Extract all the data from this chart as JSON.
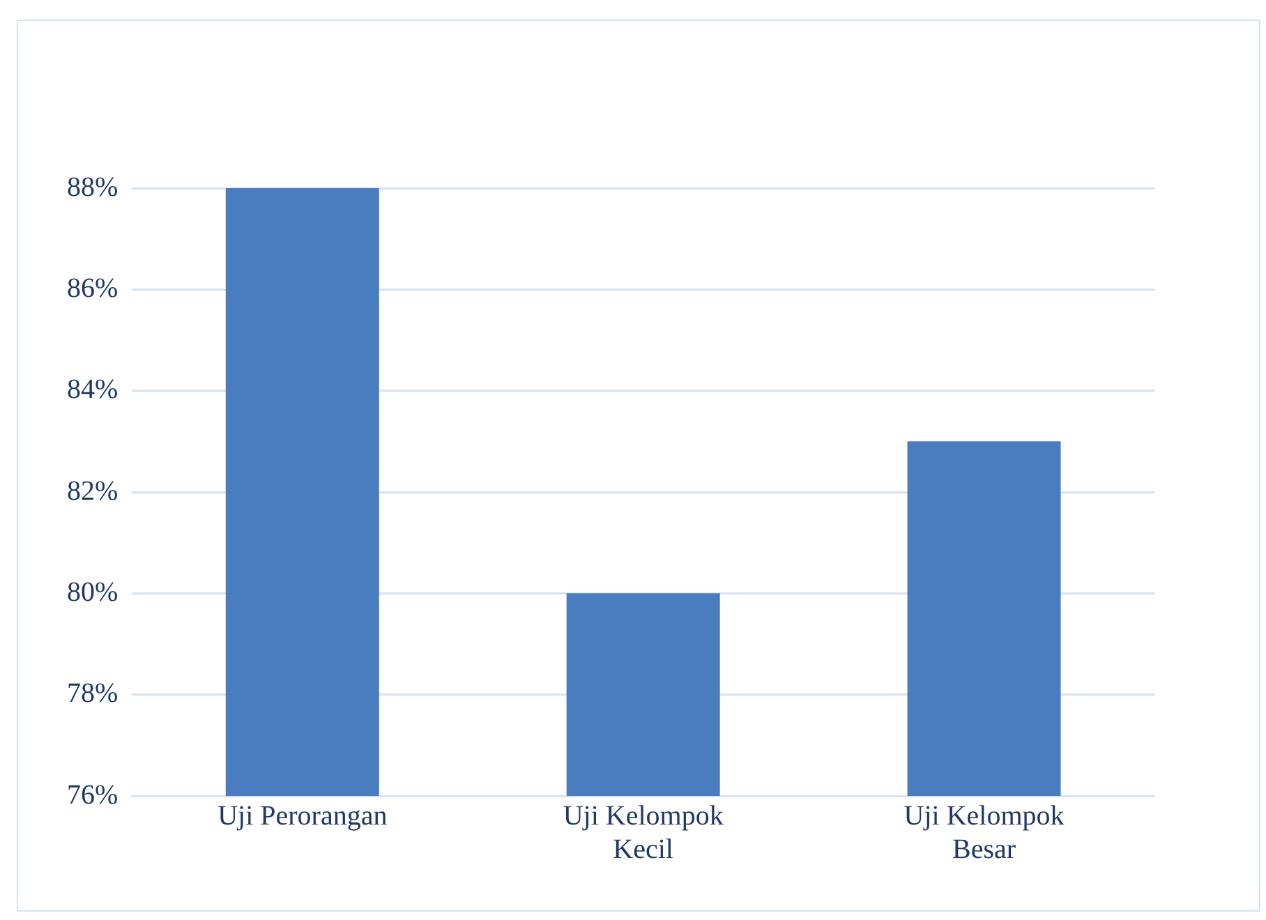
{
  "chart_data": {
    "type": "bar",
    "categories": [
      "Uji Perorangan",
      "Uji Kelompok Kecil",
      "Uji Kelompok Besar"
    ],
    "values": [
      88,
      80,
      83
    ],
    "color": "#4a7cc0",
    "ylim": [
      76,
      88
    ],
    "yticks": [
      {
        "value": 76,
        "label": "76%"
      },
      {
        "value": 78,
        "label": "78%"
      },
      {
        "value": 80,
        "label": "80%"
      },
      {
        "value": 82,
        "label": "82%"
      },
      {
        "value": 84,
        "label": "84%"
      },
      {
        "value": 86,
        "label": "86%"
      },
      {
        "value": 88,
        "label": "88%"
      }
    ],
    "grid": "y",
    "legend": false
  }
}
